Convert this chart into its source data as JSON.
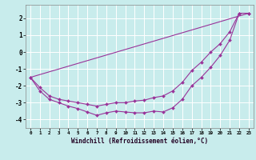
{
  "xlabel": "Windchill (Refroidissement éolien,°C)",
  "bg_color": "#c8ecec",
  "grid_color": "#ffffff",
  "line_color": "#993399",
  "xlim": [
    -0.5,
    23.5
  ],
  "ylim": [
    -4.5,
    2.8
  ],
  "xticks": [
    0,
    1,
    2,
    3,
    4,
    5,
    6,
    7,
    8,
    9,
    10,
    11,
    12,
    13,
    14,
    15,
    16,
    17,
    18,
    19,
    20,
    21,
    22,
    23
  ],
  "yticks": [
    -4,
    -3,
    -2,
    -1,
    0,
    1,
    2
  ],
  "three_lines": [
    {
      "x": [
        0,
        23
      ],
      "y": [
        -1.5,
        2.3
      ],
      "markers": false
    },
    {
      "x": [
        0,
        1,
        2,
        3,
        4,
        5,
        6,
        7,
        8,
        9,
        10,
        11,
        12,
        13,
        14,
        15,
        16,
        17,
        18,
        19,
        20,
        21,
        22,
        23
      ],
      "y": [
        -1.5,
        -2.3,
        -2.8,
        -3.0,
        -3.2,
        -3.35,
        -3.55,
        -3.75,
        -3.6,
        -3.5,
        -3.55,
        -3.6,
        -3.6,
        -3.5,
        -3.55,
        -3.3,
        -2.8,
        -2.0,
        -1.5,
        -0.9,
        -0.2,
        0.7,
        2.3,
        2.3
      ],
      "markers": true
    },
    {
      "x": [
        0,
        1,
        2,
        3,
        4,
        5,
        6,
        7,
        8,
        9,
        10,
        11,
        12,
        13,
        14,
        15,
        16,
        17,
        18,
        19,
        20,
        21,
        22,
        23
      ],
      "y": [
        -1.5,
        -2.1,
        -2.6,
        -2.8,
        -2.9,
        -3.0,
        -3.1,
        -3.2,
        -3.1,
        -3.0,
        -3.0,
        -2.9,
        -2.85,
        -2.7,
        -2.6,
        -2.3,
        -1.8,
        -1.1,
        -0.6,
        0.0,
        0.5,
        1.2,
        2.3,
        2.3
      ],
      "markers": true
    }
  ]
}
